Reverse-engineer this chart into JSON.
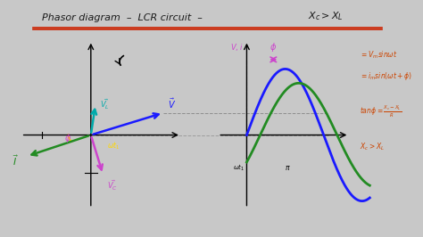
{
  "bg_color": "#c8c8c8",
  "whiteboard_color": "#e8e8e0",
  "title_text": "Phasor diagram  -  LCR circuit  -  Xc > XL",
  "arrow_color_I": "#228B22",
  "arrow_color_V": "#1a1aff",
  "arrow_color_VR": "#1a1aff",
  "arrow_color_VL": "#00aaaa",
  "arrow_color_VC": "#cc44cc",
  "arrow_color_angle": "#FFD700",
  "wave_color_V": "#1a1aff",
  "wave_color_I": "#228B22",
  "title_color": "#1a1a1a",
  "formula_color": "#cc4400",
  "underline_color": "#cc2200",
  "phi_color": "#cc44cc",
  "phasor_ox": 0.22,
  "phasor_oy": 0.43,
  "wave_ox": 0.6,
  "wave_oy": 0.43
}
